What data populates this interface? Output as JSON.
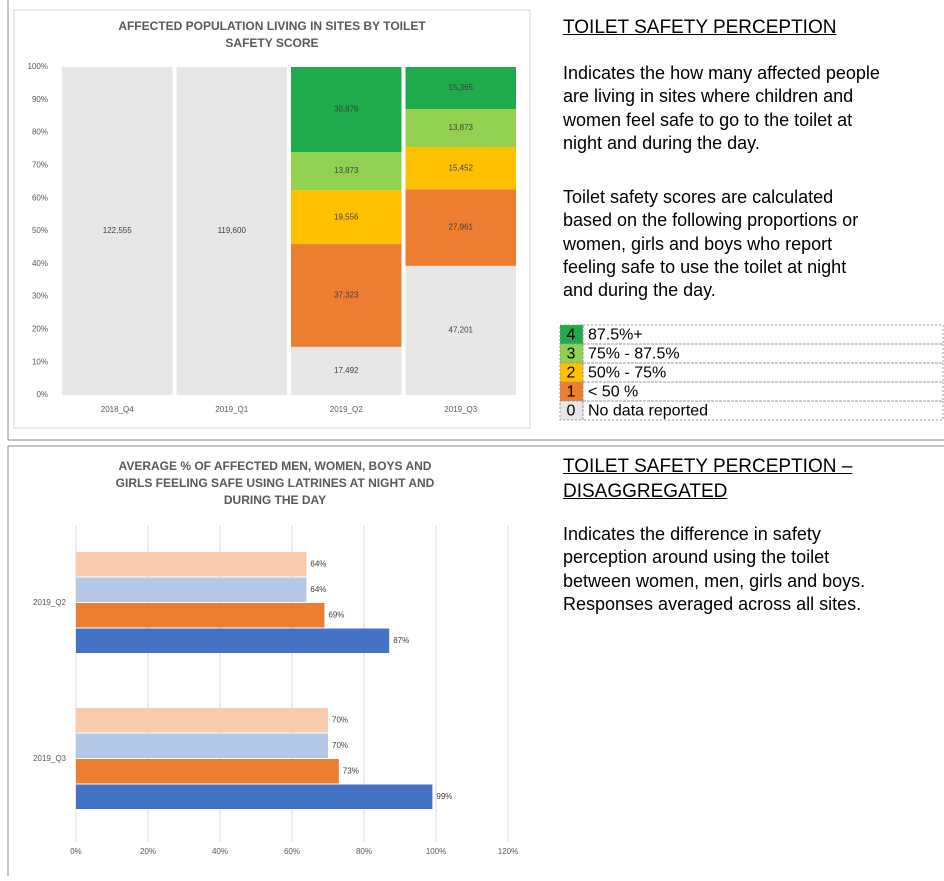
{
  "chart_data": [
    {
      "type": "stacked_percent_bar",
      "title_lines": [
        "AFFECTED POPULATION LIVING IN SITES BY TOILET",
        "SAFETY SCORE"
      ],
      "categories": [
        "2018_Q4",
        "2019_Q1",
        "2019_Q2",
        "2019_Q3"
      ],
      "series": [
        {
          "name": "0",
          "legend_label": "No data reported",
          "color": "#e7e7e7",
          "values": [
            122555,
            119600,
            17492,
            47201
          ],
          "value_labels": [
            "122,555",
            "119,600",
            "17,492",
            "47,201"
          ]
        },
        {
          "name": "1",
          "legend_label": "< 50 %",
          "color": "#ed7d31",
          "values": [
            null,
            null,
            37323,
            27961
          ],
          "value_labels": [
            null,
            null,
            "37,323",
            "27,961"
          ]
        },
        {
          "name": "2",
          "legend_label": "50% - 75%",
          "color": "#ffc000",
          "values": [
            null,
            null,
            19556,
            15452
          ],
          "value_labels": [
            null,
            null,
            "19,556",
            "15,452"
          ]
        },
        {
          "name": "3",
          "legend_label": "75% - 87.5%",
          "color": "#92d050",
          "values": [
            null,
            null,
            13873,
            13873
          ],
          "value_labels": [
            null,
            null,
            "13,873",
            "13,873"
          ]
        },
        {
          "name": "4",
          "legend_label": "87.5%+",
          "color": "#1faa4b",
          "values": [
            null,
            null,
            30876,
            15365
          ],
          "value_labels": [
            null,
            null,
            "30,876",
            "15,365"
          ]
        }
      ],
      "ylim": [
        0,
        100
      ],
      "yticks": [
        {
          "value": 0,
          "label": "0%"
        },
        {
          "value": 10,
          "label": "10%"
        },
        {
          "value": 20,
          "label": "20%"
        },
        {
          "value": 30,
          "label": "30%"
        },
        {
          "value": 40,
          "label": "40%"
        },
        {
          "value": 50,
          "label": "50%"
        },
        {
          "value": 60,
          "label": "60%"
        },
        {
          "value": 70,
          "label": "70%"
        },
        {
          "value": 80,
          "label": "80%"
        },
        {
          "value": 90,
          "label": "90%"
        },
        {
          "value": 100,
          "label": "100%"
        }
      ],
      "grid": false
    },
    {
      "type": "horizontal_bar",
      "title_lines": [
        "AVERAGE % OF AFFECTED MEN, WOMEN, BOYS AND",
        "GIRLS FEELING SAFE USING LATRINES AT NIGHT AND",
        "DURING THE DAY"
      ],
      "categories": [
        "2019_Q2",
        "2019_Q3"
      ],
      "series": [
        {
          "color": "#f8cbad",
          "values": [
            64,
            70
          ],
          "value_labels": [
            "64%",
            "70%"
          ]
        },
        {
          "color": "#b4c7e7",
          "values": [
            64,
            70
          ],
          "value_labels": [
            "64%",
            "70%"
          ]
        },
        {
          "color": "#ed7d31",
          "values": [
            69,
            73
          ],
          "value_labels": [
            "69%",
            "73%"
          ]
        },
        {
          "color": "#4472c4",
          "values": [
            87,
            99
          ],
          "value_labels": [
            "87%",
            "99%"
          ]
        }
      ],
      "xlim": [
        0,
        120
      ],
      "xticks": [
        {
          "value": 0,
          "label": "0%"
        },
        {
          "value": 20,
          "label": "20%"
        },
        {
          "value": 40,
          "label": "40%"
        },
        {
          "value": 60,
          "label": "60%"
        },
        {
          "value": 80,
          "label": "80%"
        },
        {
          "value": 100,
          "label": "100%"
        },
        {
          "value": 120,
          "label": "120%"
        }
      ],
      "grid": true
    }
  ],
  "text": {
    "heading_1": "TOILET SAFETY PERCEPTION",
    "paragraph_1": [
      "Indicates the how many affected people",
      "are living in sites where children and",
      "women feel safe to go to the toilet at",
      "night and during the day."
    ],
    "paragraph_2": [
      "Toilet safety scores are calculated",
      "based on the following proportions or",
      "women, girls and boys who report",
      "feeling safe to use the toilet at night",
      "and during the day."
    ],
    "heading_2": [
      "TOILET SAFETY PERCEPTION –",
      "DISAGGREGATED"
    ],
    "paragraph_3": [
      "Indicates the difference in safety",
      "perception around using the toilet",
      "between women, men, girls and boys.",
      "Responses averaged across all sites."
    ]
  }
}
